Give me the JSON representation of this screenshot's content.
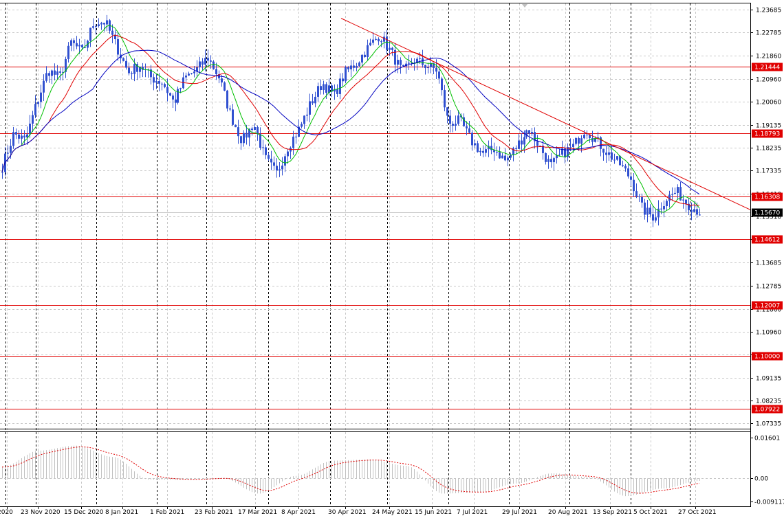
{
  "chart_data": {
    "type": "candlestick",
    "symbol_hint": "",
    "price_axis": {
      "ticks": [
        "1.23685",
        "1.22785",
        "1.21860",
        "1.20960",
        "1.20060",
        "1.19135",
        "1.18235",
        "1.17335",
        "1.16410",
        "1.15510",
        "1.14610",
        "1.13685",
        "1.12785",
        "1.11860",
        "1.10960",
        "1.10060",
        "1.09135",
        "1.08235",
        "1.07335"
      ],
      "range": [
        1.0718,
        1.2391
      ]
    },
    "date_axis": {
      "labels": [
        "2020",
        "23 Nov 2020",
        "15 Dec 2020",
        "8 Jan 2021",
        "1 Feb 2021",
        "23 Feb 2021",
        "17 Mar 2021",
        "8 Apr 2021",
        "30 Apr 2021",
        "24 May 2021",
        "15 Jun 2021",
        "7 Jul 2021",
        "29 Jul 2021",
        "20 Aug 2021",
        "13 Sep 2021",
        "5 Oct 2021",
        "27 Oct 2021"
      ]
    },
    "current_price": {
      "label": "1.15670",
      "value": 1.1567,
      "color": "#000000"
    },
    "levels": [
      {
        "label": "1.21444",
        "value": 1.21444,
        "color": "#e00000"
      },
      {
        "label": "1.18793",
        "value": 1.18793,
        "color": "#e00000"
      },
      {
        "label": "1.16308",
        "value": 1.16308,
        "color": "#e00000"
      },
      {
        "label": "1.14612",
        "value": 1.14612,
        "color": "#e00000"
      },
      {
        "label": "1.12007",
        "value": 1.12007,
        "color": "#e00000"
      },
      {
        "label": "1.10000",
        "value": 1.1,
        "color": "#e00000"
      },
      {
        "label": "1.07922",
        "value": 1.07922,
        "color": "#e00000"
      }
    ],
    "trendline": {
      "color": "#e00000",
      "from_value": 1.2335,
      "to_value": 1.1578
    },
    "price_path_anchors": [
      1.175,
      1.188,
      1.185,
      1.2,
      1.213,
      1.21,
      1.224,
      1.22,
      1.232,
      1.232,
      1.222,
      1.212,
      1.215,
      1.21,
      1.208,
      1.2,
      1.21,
      1.213,
      1.218,
      1.21,
      1.195,
      1.185,
      1.192,
      1.178,
      1.172,
      1.183,
      1.19,
      1.2,
      1.208,
      1.203,
      1.212,
      1.216,
      1.222,
      1.227,
      1.22,
      1.212,
      1.217,
      1.215,
      1.213,
      1.192,
      1.193,
      1.185,
      1.18,
      1.182,
      1.177,
      1.183,
      1.19,
      1.183,
      1.175,
      1.18,
      1.183,
      1.19,
      1.185,
      1.18,
      1.176,
      1.17,
      1.158,
      1.155,
      1.162,
      1.165,
      1.16,
      1.157
    ],
    "moving_averages": [
      {
        "color": "#00c000",
        "period_hint": "short"
      },
      {
        "color": "#e00000",
        "period_hint": "medium"
      },
      {
        "color": "#0000c0",
        "period_hint": "long"
      }
    ],
    "colors": {
      "candle": "#3050d0",
      "grid": "#c8c8c8",
      "vline": "#000000"
    },
    "oscillator": {
      "ticks": [
        "0.01601",
        "0.00",
        "-0.009117"
      ],
      "range": [
        -0.0105,
        0.0175
      ],
      "histogram_color": "#c0c0c0",
      "signal_color": "#e00000",
      "histogram_anchors": [
        0.0045,
        0.011,
        0.013,
        0.0085,
        -0.0005,
        -0.0005,
        0.0002,
        -0.006,
        0.001,
        0.007,
        0.0075,
        0.005,
        -0.006,
        -0.0055,
        -0.002,
        0.002,
        0.0005,
        -0.007,
        -0.004,
        -0.001
      ]
    }
  }
}
